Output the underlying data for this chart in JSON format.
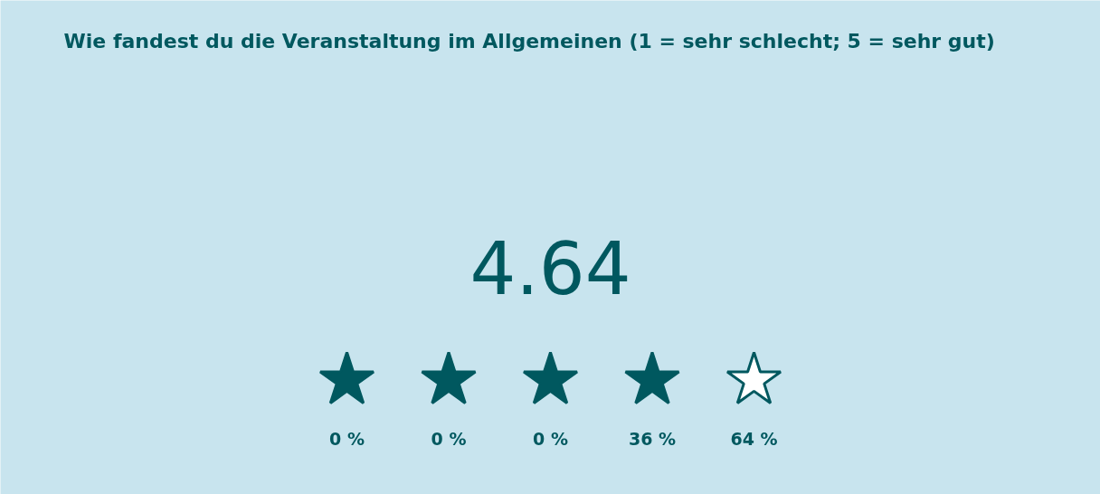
{
  "chart_data": {
    "type": "other",
    "title": "Wie fandest du die Veranstaltung im Allgemeinen (1 = sehr schlecht; 5 = sehr gut)",
    "categories": [
      null,
      null,
      null,
      null,
      null
    ],
    "values": [
      0,
      0,
      0,
      36,
      64
    ],
    "value_labels": [
      "0 %",
      "0 %",
      "0 %",
      "36 %",
      "64 %"
    ],
    "annotations": [
      "4.64"
    ],
    "color": "#00585f"
  }
}
